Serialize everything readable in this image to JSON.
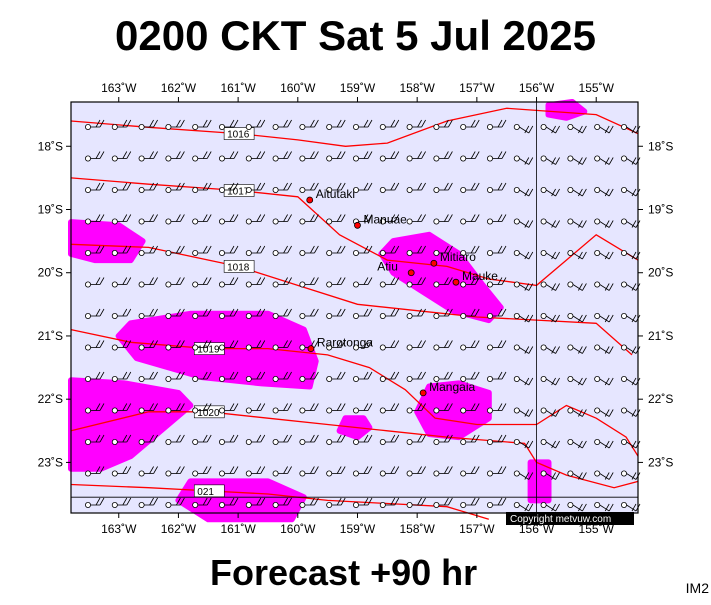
{
  "header": {
    "title": "0200 CKT Sat 5 Jul 2025"
  },
  "footer": {
    "forecast": "Forecast +90 hr",
    "code": "IM2",
    "copyright": "Copyright metvuw.com"
  },
  "axes": {
    "lon_labels": [
      "163˚W",
      "162˚W",
      "161˚W",
      "160˚W",
      "159˚W",
      "158˚W",
      "157˚W",
      "156˚W",
      "155˚W"
    ],
    "lat_labels": [
      "18˚S",
      "19˚S",
      "20˚S",
      "21˚S",
      "22˚S",
      "23˚S"
    ]
  },
  "places": [
    {
      "name": "Aitutaki",
      "lon": -159.8,
      "lat": -18.85
    },
    {
      "name": "Manuae",
      "lon": -159.0,
      "lat": -19.25
    },
    {
      "name": "Mitiaro",
      "lon": -157.72,
      "lat": -19.85
    },
    {
      "name": "Atiu",
      "lon": -158.1,
      "lat": -20.0
    },
    {
      "name": "Mauke",
      "lon": -157.35,
      "lat": -20.15
    },
    {
      "name": "Rarotonga",
      "lon": -159.78,
      "lat": -21.2
    },
    {
      "name": "Mangaia",
      "lon": -157.9,
      "lat": -21.9
    }
  ],
  "isobars": [
    {
      "label": "1016",
      "points": [
        [
          -163.8,
          -17.6
        ],
        [
          -162.5,
          -17.7
        ],
        [
          -161,
          -17.8
        ],
        [
          -160,
          -17.9
        ],
        [
          -159.2,
          -18.0
        ],
        [
          -158.5,
          -17.95
        ],
        [
          -157.5,
          -17.6
        ],
        [
          -156.5,
          -17.4
        ],
        [
          -155,
          -17.5
        ],
        [
          -154.3,
          -17.8
        ]
      ]
    },
    {
      "label": "1017",
      "points": [
        [
          -163.8,
          -18.5
        ],
        [
          -162.5,
          -18.6
        ],
        [
          -161,
          -18.7
        ],
        [
          -160,
          -18.8
        ],
        [
          -159.3,
          -19.4
        ],
        [
          -158.5,
          -19.8
        ],
        [
          -157.5,
          -19.9
        ],
        [
          -156.8,
          -20.1
        ],
        [
          -156,
          -20.2
        ],
        [
          -155.5,
          -19.8
        ],
        [
          -155,
          -19.4
        ],
        [
          -154.3,
          -19.8
        ]
      ]
    },
    {
      "label": "1018",
      "points": [
        [
          -163.8,
          -19.55
        ],
        [
          -162.5,
          -19.6
        ],
        [
          -161,
          -19.9
        ],
        [
          -160,
          -20.2
        ],
        [
          -159,
          -20.5
        ],
        [
          -158,
          -20.6
        ],
        [
          -157,
          -20.7
        ],
        [
          -156,
          -20.75
        ],
        [
          -155,
          -20.8
        ],
        [
          -154.4,
          -21.3
        ]
      ]
    },
    {
      "label": "1019",
      "points": [
        [
          -163.8,
          -20.9
        ],
        [
          -162.8,
          -21.1
        ],
        [
          -161.5,
          -21.2
        ],
        [
          -160.5,
          -21.2
        ],
        [
          -159.5,
          -21.3
        ],
        [
          -158.8,
          -21.5
        ],
        [
          -158.2,
          -21.85
        ],
        [
          -157.7,
          -22.3
        ],
        [
          -157,
          -22.4
        ],
        [
          -156,
          -22.4
        ],
        [
          -155.5,
          -22.1
        ],
        [
          -155,
          -22.3
        ],
        [
          -154.5,
          -22.6
        ],
        [
          -154.3,
          -22.9
        ]
      ]
    },
    {
      "label": "1020",
      "points": [
        [
          -163.8,
          -22.5
        ],
        [
          -162.5,
          -22.2
        ],
        [
          -161.5,
          -22.2
        ],
        [
          -160.5,
          -22.3
        ],
        [
          -159.5,
          -22.4
        ],
        [
          -158.5,
          -22.5
        ],
        [
          -157.5,
          -22.6
        ],
        [
          -156.2,
          -22.7
        ],
        [
          -156,
          -23.0
        ],
        [
          -155.5,
          -23.2
        ],
        [
          -154.7,
          -23.4
        ],
        [
          -154.3,
          -23.3
        ]
      ]
    },
    {
      "label": "021",
      "points": [
        [
          -163.8,
          -23.35
        ],
        [
          -162.5,
          -23.4
        ],
        [
          -161.5,
          -23.45
        ],
        [
          -160.5,
          -23.5
        ],
        [
          -159.5,
          -23.6
        ],
        [
          -158.5,
          -23.65
        ],
        [
          -157.5,
          -23.7
        ],
        [
          -156.8,
          -23.9
        ]
      ]
    }
  ],
  "precip": [
    [
      [
        -163.8,
        -19.2
      ],
      [
        -163.0,
        -19.25
      ],
      [
        -162.6,
        -19.5
      ],
      [
        -162.8,
        -19.8
      ],
      [
        -163.4,
        -19.8
      ],
      [
        -163.8,
        -19.7
      ]
    ],
    [
      [
        -162.8,
        -20.8
      ],
      [
        -161.8,
        -20.65
      ],
      [
        -160.5,
        -20.65
      ],
      [
        -159.9,
        -20.9
      ],
      [
        -159.7,
        -21.4
      ],
      [
        -159.8,
        -21.8
      ],
      [
        -160.6,
        -21.75
      ],
      [
        -161.6,
        -21.65
      ],
      [
        -162.7,
        -21.35
      ],
      [
        -163.0,
        -21.0
      ]
    ],
    [
      [
        -163.8,
        -21.7
      ],
      [
        -162.9,
        -21.75
      ],
      [
        -162.0,
        -21.9
      ],
      [
        -161.8,
        -22.1
      ],
      [
        -162.3,
        -22.5
      ],
      [
        -162.8,
        -22.9
      ],
      [
        -163.3,
        -23.1
      ],
      [
        -163.8,
        -23.1
      ]
    ],
    [
      [
        -158.4,
        -19.5
      ],
      [
        -157.8,
        -19.4
      ],
      [
        -157.3,
        -19.7
      ],
      [
        -156.9,
        -20.2
      ],
      [
        -156.6,
        -20.55
      ],
      [
        -156.8,
        -20.75
      ],
      [
        -157.4,
        -20.6
      ],
      [
        -157.9,
        -20.3
      ],
      [
        -158.4,
        -20.0
      ],
      [
        -158.6,
        -19.7
      ]
    ],
    [
      [
        -157.8,
        -21.8
      ],
      [
        -157.3,
        -21.75
      ],
      [
        -156.8,
        -21.9
      ],
      [
        -156.8,
        -22.3
      ],
      [
        -157.3,
        -22.6
      ],
      [
        -157.8,
        -22.55
      ],
      [
        -158.0,
        -22.2
      ]
    ],
    [
      [
        -159.2,
        -22.3
      ],
      [
        -158.9,
        -22.3
      ],
      [
        -158.8,
        -22.45
      ],
      [
        -159.0,
        -22.6
      ],
      [
        -159.3,
        -22.5
      ]
    ],
    [
      [
        -161.8,
        -23.3
      ],
      [
        -160.5,
        -23.3
      ],
      [
        -159.9,
        -23.55
      ],
      [
        -160.1,
        -23.9
      ],
      [
        -161.5,
        -23.9
      ],
      [
        -162.0,
        -23.6
      ]
    ],
    [
      [
        -156.1,
        -23.0
      ],
      [
        -155.8,
        -23.0
      ],
      [
        -155.8,
        -23.6
      ],
      [
        -156.1,
        -23.6
      ]
    ],
    [
      [
        -155.8,
        -17.35
      ],
      [
        -155.4,
        -17.3
      ],
      [
        -155.2,
        -17.45
      ],
      [
        -155.5,
        -17.55
      ],
      [
        -155.8,
        -17.5
      ]
    ]
  ],
  "colors": {
    "background": "#e6e6ff",
    "precip": "#ff00ff",
    "isobar": "#ff0000",
    "grid": "#000000"
  }
}
